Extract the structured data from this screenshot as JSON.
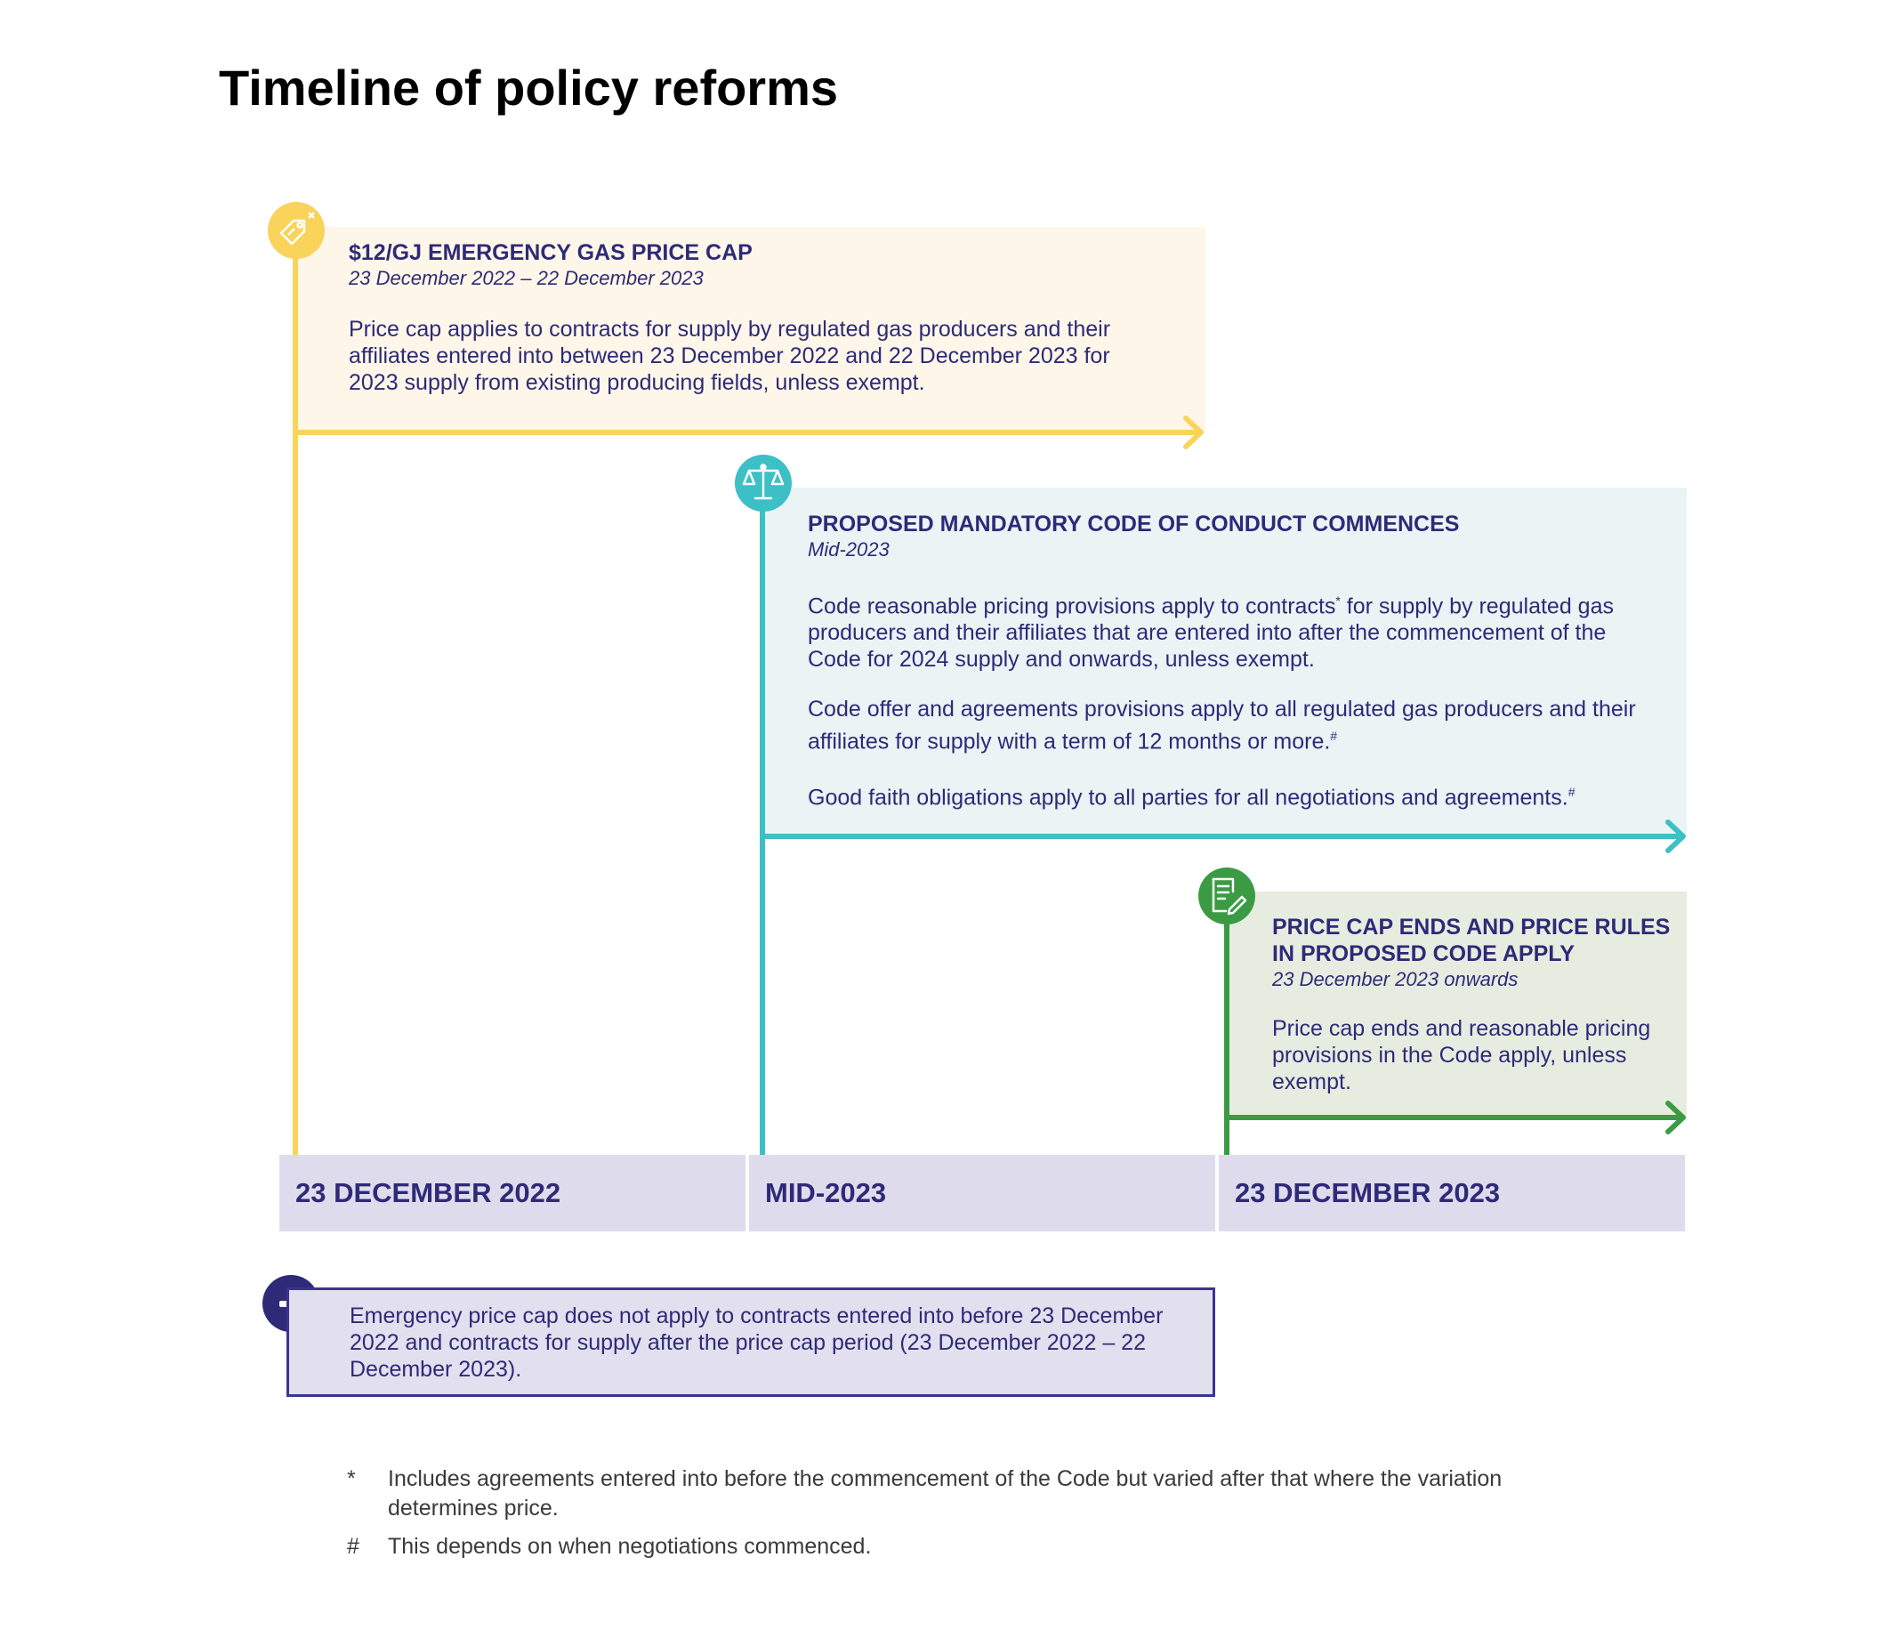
{
  "title": "Timeline of policy reforms",
  "colors": {
    "yellow": "#f9d35a",
    "teal": "#3dbfc6",
    "green": "#3b9b44",
    "navy": "#2e2a78",
    "band": "#dedcec"
  },
  "icons": {
    "cap": "price-tag-icon",
    "code": "scales-icon",
    "rules": "document-edit-icon",
    "note": "minus-icon"
  },
  "cards": [
    {
      "title": "$12/GJ EMERGENCY GAS PRICE CAP",
      "date": "23 December 2022 – 22 December 2023",
      "body": [
        "Price cap applies to contracts for supply by regulated gas producers and their affiliates entered into between 23 December 2022 and 22 December 2023 for 2023 supply from existing producing fields, unless exempt."
      ]
    },
    {
      "title": "PROPOSED MANDATORY CODE OF CONDUCT COMMENCES",
      "date": "Mid-2023",
      "body": [
        "Code reasonable pricing provisions apply to contracts",
        "for supply by regulated gas producers and their affiliates that are entered into after the commencement of the Code for 2024 supply and onwards, unless exempt.",
        "Code offer and agreements provisions apply to all regulated gas producers and their affiliates for supply with a term of 12 months or more.",
        "Good faith obligations apply to all parties for all negotiations and agreements."
      ],
      "marks": [
        "*",
        "#",
        "#"
      ]
    },
    {
      "title": "PRICE CAP ENDS AND PRICE RULES IN PROPOSED CODE APPLY",
      "date": "23 December 2023 onwards",
      "body": [
        "Price cap ends and reasonable pricing provisions in the Code apply, unless exempt."
      ]
    }
  ],
  "timeline_dates": [
    "23 DECEMBER 2022",
    "MID-2023",
    "23 DECEMBER 2023"
  ],
  "note": "Emergency price cap does not apply to contracts entered into before 23 December 2022 and contracts for supply after the price cap period (23 December 2022 – 22 December 2023).",
  "footnotes": [
    {
      "mark": "*",
      "text": "Includes agreements entered into before the commencement of the Code but varied after that where the variation determines price."
    },
    {
      "mark": "#",
      "text": "This depends on when negotiations commenced."
    }
  ]
}
